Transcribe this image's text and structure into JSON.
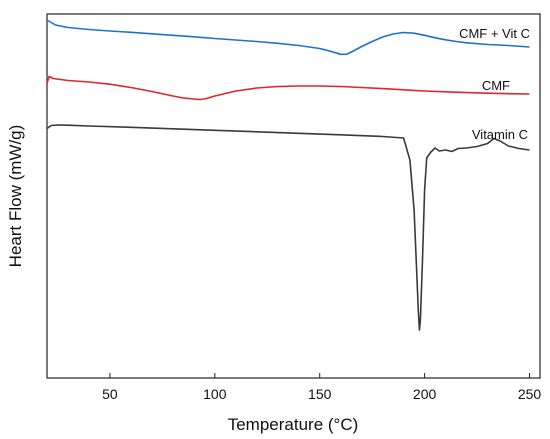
{
  "chart_data": {
    "type": "line",
    "xlabel": "Temperature (°C)",
    "ylabel": "Heart Flow (mW/g)",
    "xlim": [
      20,
      255
    ],
    "x_ticks": [
      50,
      100,
      150,
      200,
      250
    ],
    "y_ticks": [],
    "grid": false,
    "legend": "inline labels at right end of each curve",
    "series": [
      {
        "name": "CMF + Vit C",
        "color": "#1f6fd6",
        "x": [
          20,
          24,
          30,
          40,
          50,
          60,
          70,
          80,
          90,
          100,
          110,
          120,
          130,
          140,
          150,
          155,
          160,
          163,
          166,
          170,
          175,
          180,
          185,
          190,
          195,
          200,
          205,
          210,
          215,
          220,
          230,
          240,
          250
        ],
        "y": [
          0.0,
          5.0,
          7.5,
          9.5,
          11.0,
          12.3,
          13.8,
          15.3,
          16.8,
          18.5,
          20.0,
          21.5,
          23.3,
          25.5,
          28.5,
          31.2,
          34.3,
          34.2,
          31.0,
          26.5,
          21.5,
          17.0,
          14.0,
          12.5,
          13.2,
          15.3,
          17.8,
          19.8,
          21.5,
          22.8,
          24.5,
          25.5,
          27.0
        ]
      },
      {
        "name": "CMF",
        "color": "#e0262a",
        "x": [
          20,
          21,
          23,
          30,
          40,
          50,
          60,
          70,
          80,
          85,
          90,
          93,
          96,
          100,
          110,
          120,
          130,
          140,
          150,
          160,
          170,
          180,
          190,
          200,
          210,
          220,
          230,
          240,
          250
        ],
        "y": [
          63.5,
          56.5,
          58.5,
          60.5,
          62.0,
          64.2,
          67.5,
          71.5,
          76.0,
          78.0,
          79.0,
          79.5,
          78.5,
          76.0,
          71.0,
          68.0,
          66.5,
          66.0,
          66.0,
          66.5,
          67.5,
          68.6,
          69.8,
          71.0,
          71.8,
          72.6,
          73.2,
          73.7,
          74.0
        ]
      },
      {
        "name": "Vitamin C",
        "color": "#3a3a3a",
        "x": [
          20,
          22,
          25,
          30,
          40,
          60,
          80,
          100,
          120,
          140,
          160,
          180,
          190,
          193,
          195,
          196,
          197,
          197.5,
          198,
          199,
          200,
          201,
          203,
          205,
          207,
          210,
          213,
          216,
          220,
          225,
          230,
          233,
          236,
          240,
          245,
          250
        ],
        "y": [
          108.5,
          105.5,
          105.0,
          105.2,
          106.0,
          107.3,
          108.8,
          110.3,
          111.8,
          113.3,
          114.8,
          116.5,
          118.0,
          140.0,
          190.0,
          240.0,
          290.0,
          310.0,
          300.0,
          240.0,
          170.0,
          138.0,
          132.0,
          128.0,
          131.0,
          130.0,
          131.5,
          128.5,
          128.0,
          126.5,
          123.5,
          118.5,
          121.0,
          126.0,
          128.5,
          130.0
        ]
      }
    ]
  }
}
